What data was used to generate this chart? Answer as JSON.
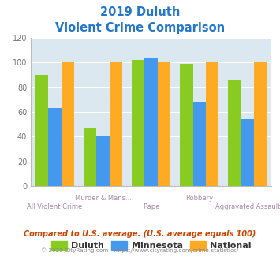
{
  "title_line1": "2019 Duluth",
  "title_line2": "Violent Crime Comparison",
  "categories": [
    "All Violent Crime",
    "Murder & Mans...",
    "Rape",
    "Robbery",
    "Aggravated Assault"
  ],
  "duluth": [
    90,
    47,
    102,
    99,
    86
  ],
  "minnesota": [
    63,
    41,
    103,
    68,
    54
  ],
  "national": [
    100,
    100,
    100,
    100,
    100
  ],
  "color_duluth": "#88cc22",
  "color_minnesota": "#4499ee",
  "color_national": "#ffaa22",
  "ylim": [
    0,
    120
  ],
  "yticks": [
    0,
    20,
    40,
    60,
    80,
    100,
    120
  ],
  "footnote1": "Compared to U.S. average. (U.S. average equals 100)",
  "footnote2": "© 2025 CityRating.com - https://www.cityrating.com/crime-statistics/",
  "title_color": "#2277cc",
  "footnote1_color": "#cc4400",
  "footnote2_color": "#888888",
  "bg_color": "#ffffff",
  "plot_bg_color": "#dce8ef"
}
